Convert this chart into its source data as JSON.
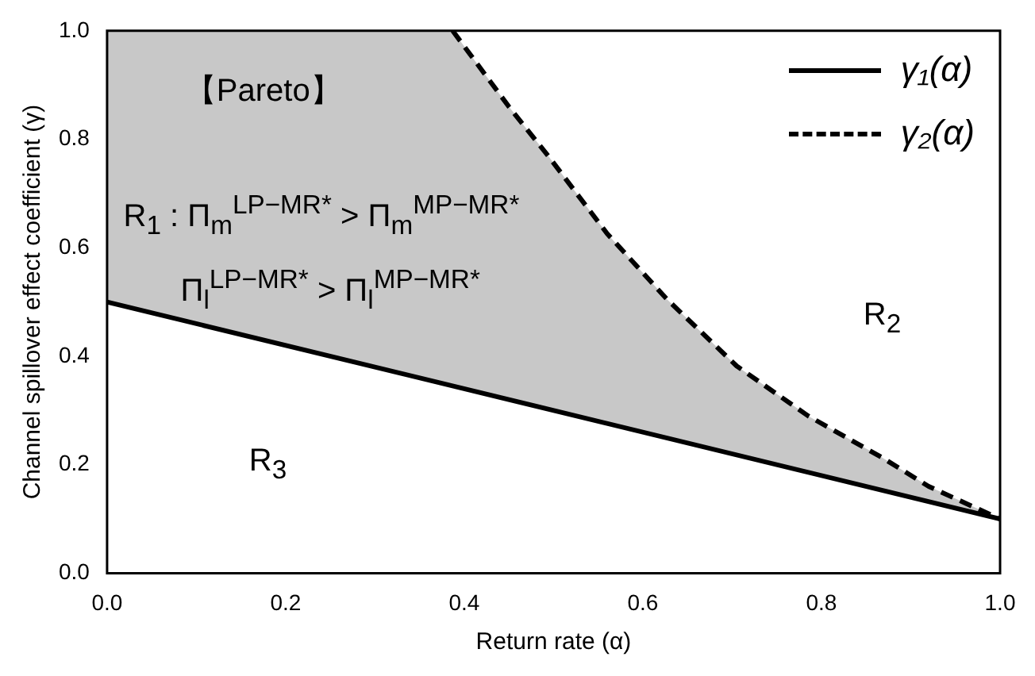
{
  "chart_data": {
    "type": "line",
    "xlabel": "Return rate (α)",
    "ylabel": "Channel spillover effect coefficient (γ)",
    "xlim": [
      0,
      1
    ],
    "ylim": [
      0,
      1
    ],
    "xticks": [
      {
        "value": 0,
        "label": "0.0"
      },
      {
        "value": 0.2,
        "label": "0.2"
      },
      {
        "value": 0.4,
        "label": "0.4"
      },
      {
        "value": 0.6,
        "label": "0.6"
      },
      {
        "value": 0.8,
        "label": "0.8"
      },
      {
        "value": 1,
        "label": "1.0"
      }
    ],
    "yticks": [
      {
        "value": 0,
        "label": "0.0"
      },
      {
        "value": 0.2,
        "label": "0.2"
      },
      {
        "value": 0.4,
        "label": "0.4"
      },
      {
        "value": 0.6,
        "label": "0.6"
      },
      {
        "value": 0.8,
        "label": "0.8"
      },
      {
        "value": 1,
        "label": "1.0"
      }
    ],
    "grid": false,
    "legend": "top right",
    "marker": "none",
    "series": [
      {
        "name": "γ₁(α)",
        "color": "#000000",
        "line_style": "solid",
        "x": [
          0,
          1
        ],
        "values": [
          0.5,
          0.1
        ]
      },
      {
        "name": "γ₂(α)",
        "color": "#000000",
        "line_style": "dashed",
        "x": [
          0.387,
          0.45,
          0.495,
          0.56,
          0.627,
          0.705,
          0.785,
          0.868,
          0.92,
          1
        ],
        "values": [
          1.0,
          0.86,
          0.767,
          0.626,
          0.505,
          0.382,
          0.29,
          0.213,
          0.16,
          0.1
        ]
      }
    ],
    "annotations": [
      "【Pareto】",
      "R$_{1}$ : Π$_{m}$$^{LP−MR*}$ > Π$_{m}$$^{MP−MR*}$",
      "Π$_{l}$$^{LP−MR*}$ > Π$_{l}$$^{MP−MR*}$",
      "R$_{2}$",
      "R$_{3}$"
    ]
  }
}
